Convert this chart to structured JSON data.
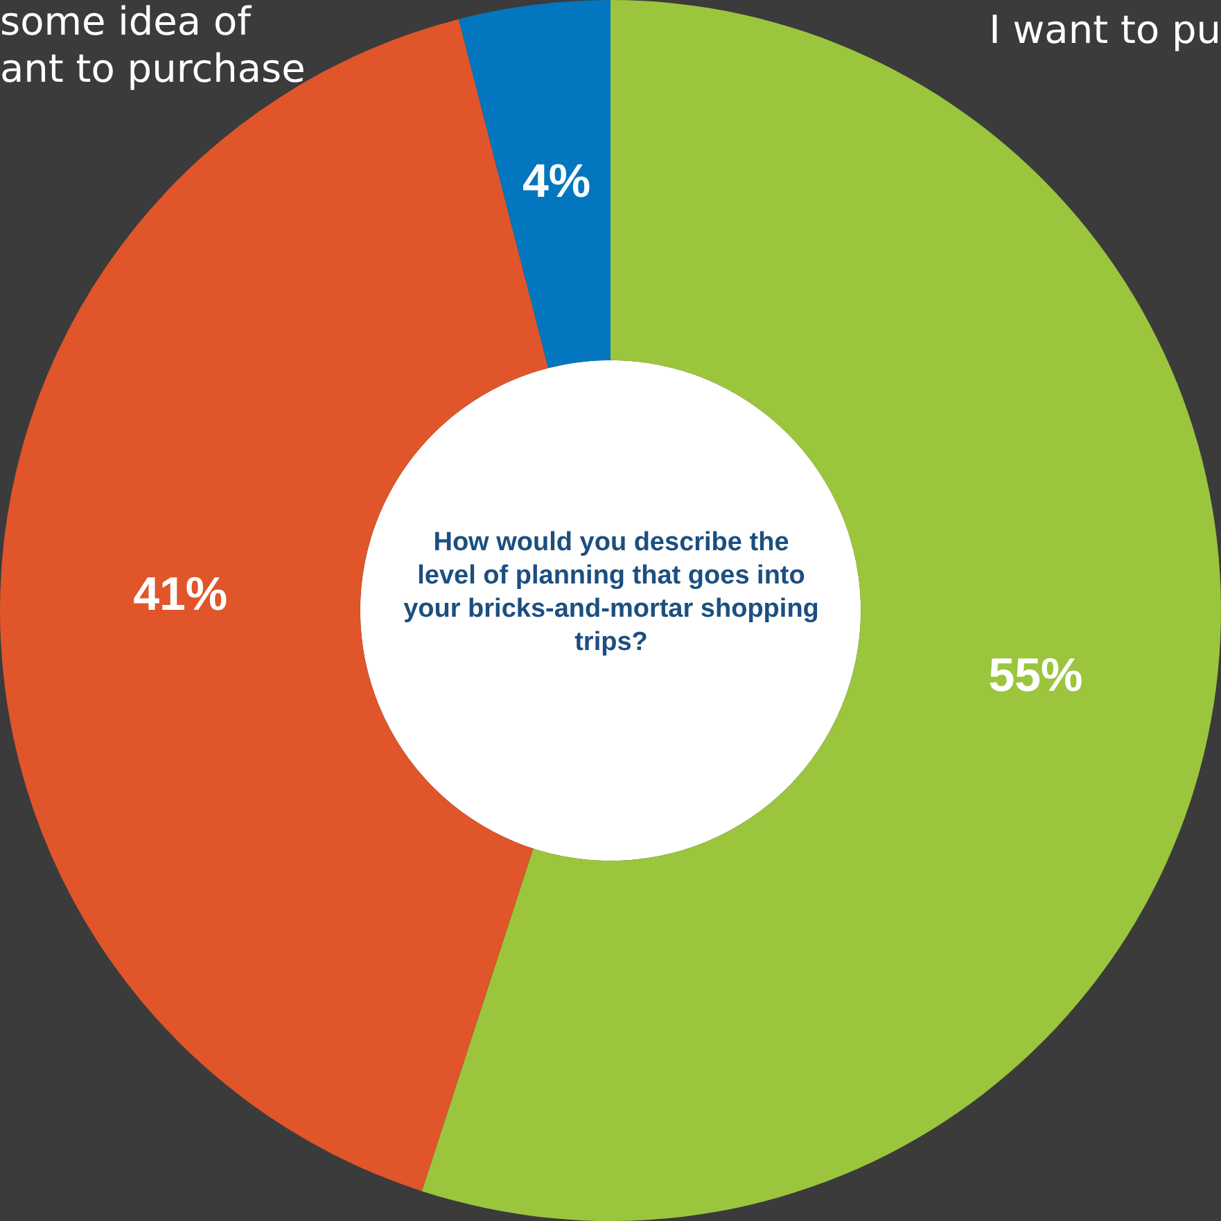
{
  "chart_data": {
    "type": "donut",
    "title": "How would you describe the level of planning that goes into your bricks-and-mortar shopping trips?",
    "categories": [
      null,
      null,
      null
    ],
    "values": [
      55,
      41,
      4
    ],
    "colors": [
      "#9bc53d",
      "#e0552a",
      "#0277c0"
    ],
    "value_labels": [
      "55%",
      "41%",
      "4%"
    ],
    "legend": false,
    "annotations": [
      "some idea of",
      "ant to purchase",
      "I want to pu"
    ]
  }
}
